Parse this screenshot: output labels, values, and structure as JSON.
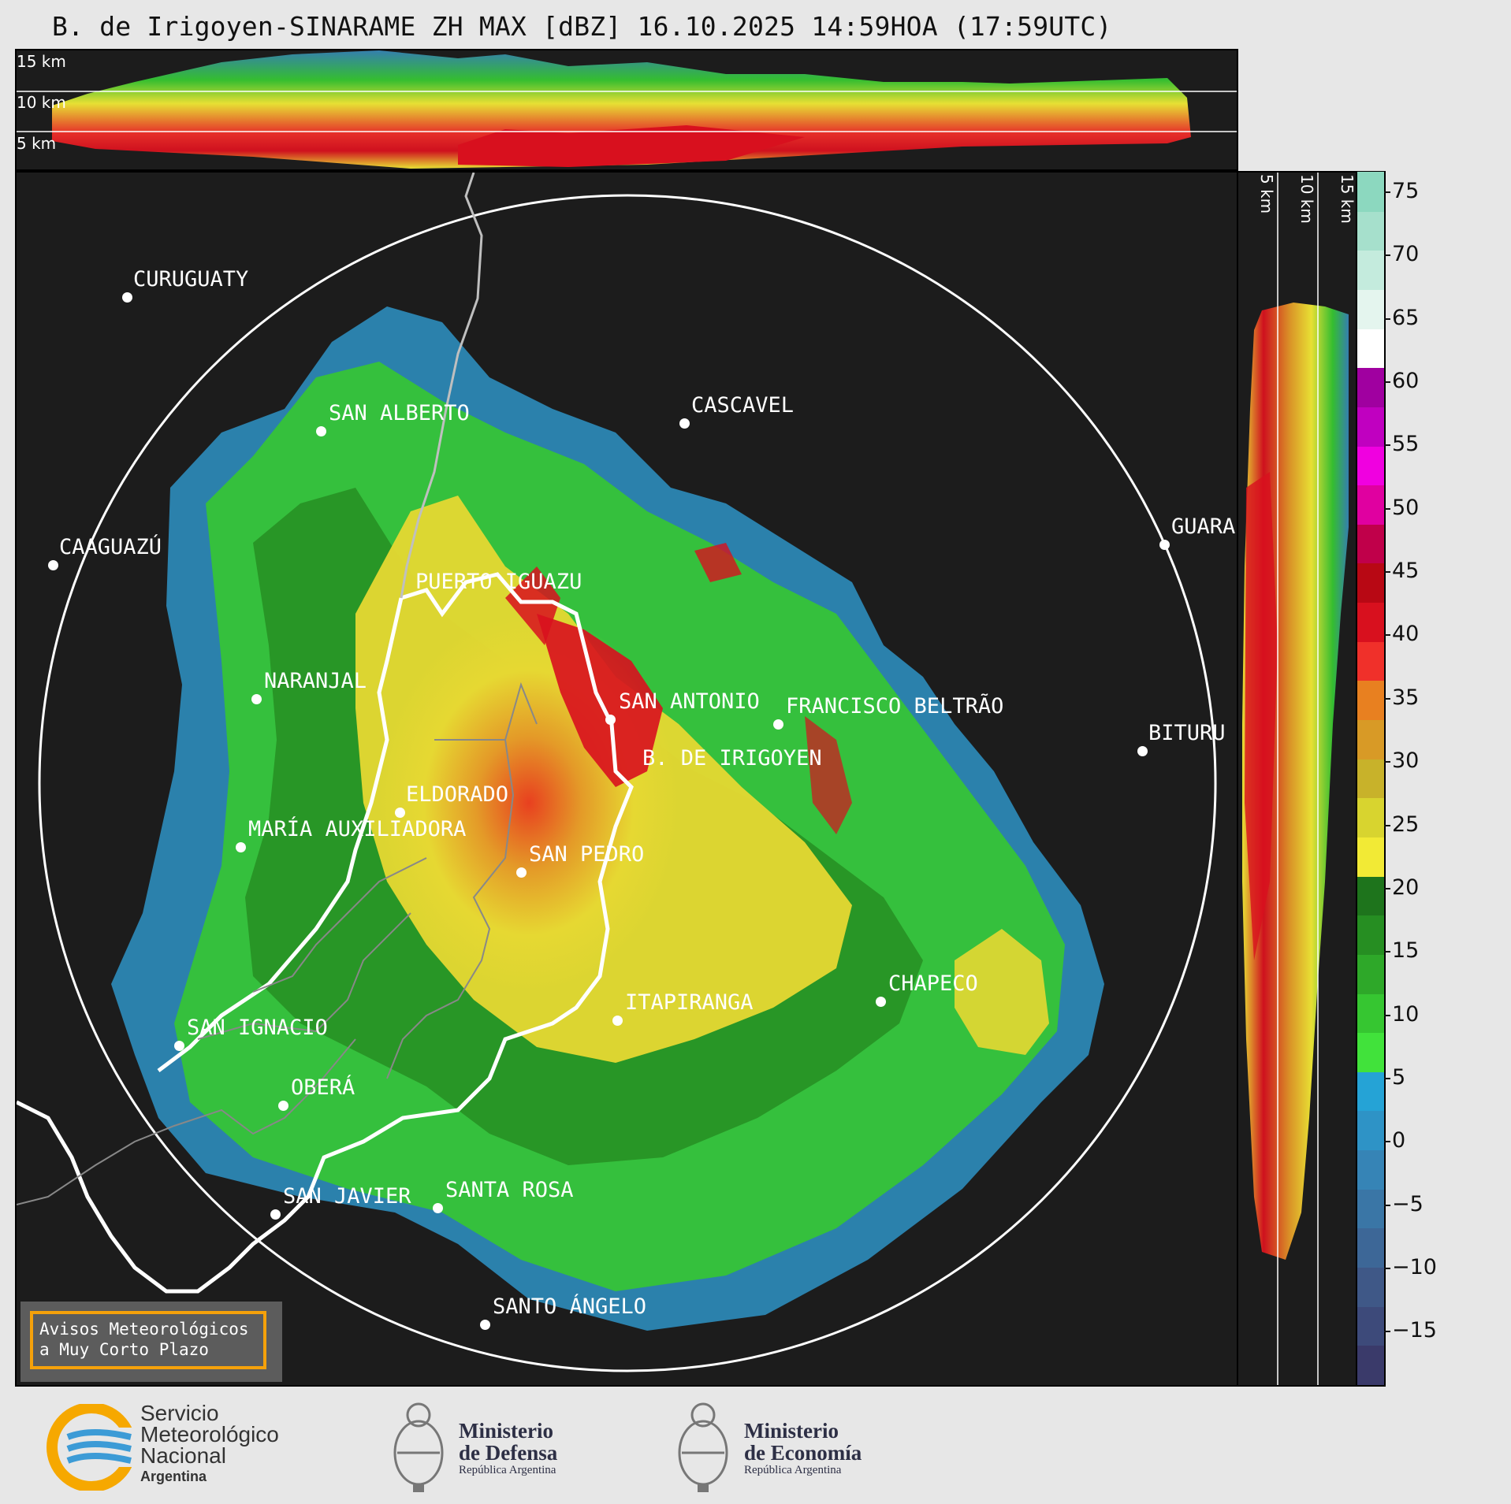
{
  "title": "B. de Irigoyen-SINARAME ZH MAX [dBZ] 16.10.2025 14:59HOA (17:59UTC)",
  "altitude_labels_top": [
    "15 km",
    "10 km",
    "5 km"
  ],
  "altitude_labels_side": [
    "5 km",
    "10 km",
    "15 km"
  ],
  "cities": [
    {
      "name": "CURUGUATY"
    },
    {
      "name": "SAN ALBERTO"
    },
    {
      "name": "CASCAVEL"
    },
    {
      "name": "CAAGUAZÚ"
    },
    {
      "name": "GUARA"
    },
    {
      "name": "PUERTO IGUAZU"
    },
    {
      "name": "NARANJAL"
    },
    {
      "name": "SAN ANTONIO"
    },
    {
      "name": "FRANCISCO BELTRÃO"
    },
    {
      "name": "BITURU"
    },
    {
      "name": "B. DE IRIGOYEN"
    },
    {
      "name": "ELDORADO"
    },
    {
      "name": "MARÍA AUXILIADORA"
    },
    {
      "name": "SAN PEDRO"
    },
    {
      "name": "CHAPECO"
    },
    {
      "name": "ITAPIRANGA"
    },
    {
      "name": "SAN IGNACIO"
    },
    {
      "name": "OBERÁ"
    },
    {
      "name": "SAN JAVIER"
    },
    {
      "name": "SANTA ROSA"
    },
    {
      "name": "SANTO ÁNGELO"
    }
  ],
  "colorbar": {
    "ticks": [
      "75",
      "70",
      "65",
      "60",
      "55",
      "50",
      "45",
      "40",
      "35",
      "30",
      "25",
      "20",
      "15",
      "10",
      "5",
      "0",
      "−5",
      "−10",
      "−15"
    ],
    "colors_bottom_to_top": [
      "#3a3a6a",
      "#3d4a7a",
      "#3f5887",
      "#3d6797",
      "#3a76a6",
      "#3684b6",
      "#2e93c6",
      "#25a3d6",
      "#41e23b",
      "#36c631",
      "#2ea829",
      "#268e22",
      "#1e741c",
      "#f2ea35",
      "#d8d42f",
      "#c8b22a",
      "#d89a26",
      "#e88020",
      "#f0302a",
      "#d8101e",
      "#b80814",
      "#c0004a",
      "#e000a0",
      "#f000e0",
      "#c000c0",
      "#a000a0",
      "#ffffff",
      "#e4f5ee",
      "#c4ebdd",
      "#a6e0cc",
      "#8cd8bf"
    ]
  },
  "avisos": {
    "line1": "Avisos Meteorológicos",
    "line2": "a Muy Corto Plazo"
  },
  "footer": {
    "smn": {
      "line1": "Servicio",
      "line2": "Meteorológico",
      "line3": "Nacional",
      "line4": "Argentina"
    },
    "defensa": {
      "title1": "Ministerio",
      "title2": "de Defensa",
      "sub": "República Argentina"
    },
    "economia": {
      "title1": "Ministerio",
      "title2": "de Economía",
      "sub": "República Argentina"
    }
  }
}
